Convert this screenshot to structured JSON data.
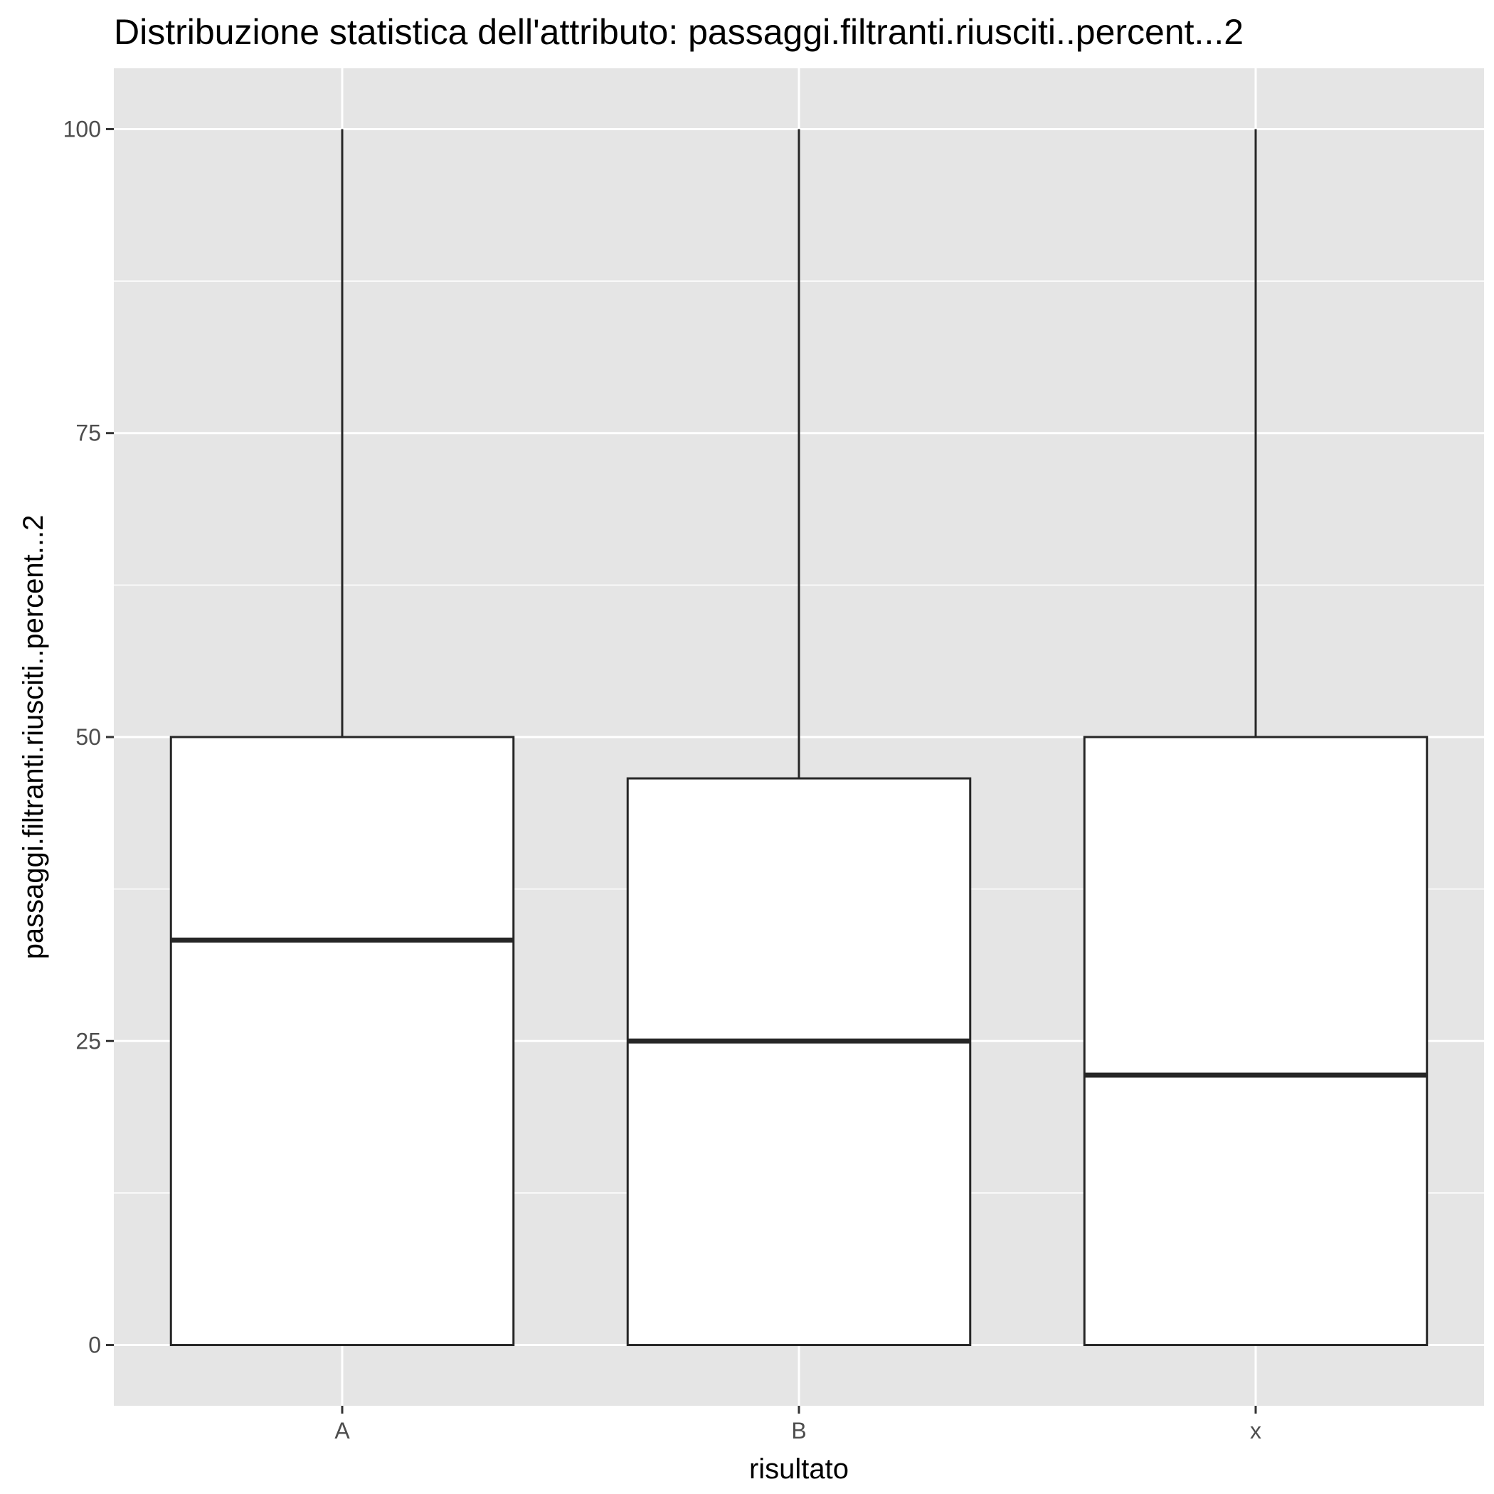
{
  "chart_data": {
    "type": "boxplot",
    "title": "Distribuzione statistica dell'attributo: passaggi.filtranti.riusciti..percent...2",
    "xlabel": "risultato",
    "ylabel": "passaggi.filtranti.riusciti..percent...2",
    "ylim": [
      -5,
      105
    ],
    "yticks": [
      0,
      25,
      50,
      75,
      100
    ],
    "grid": true,
    "categories": [
      "A",
      "B",
      "x"
    ],
    "boxes": [
      {
        "category": "A",
        "min": 0,
        "q1": 0,
        "median": 33.3,
        "q3": 50,
        "max": 100
      },
      {
        "category": "B",
        "min": 0,
        "q1": 0,
        "median": 25,
        "q3": 46.6,
        "max": 100
      },
      {
        "category": "x",
        "min": 0,
        "q1": 0,
        "median": 22.2,
        "q3": 50,
        "max": 100
      }
    ],
    "colors": {
      "panel": "#e5e5e5",
      "grid": "#ffffff",
      "box_fill": "#ffffff",
      "box_stroke": "#262626"
    }
  }
}
